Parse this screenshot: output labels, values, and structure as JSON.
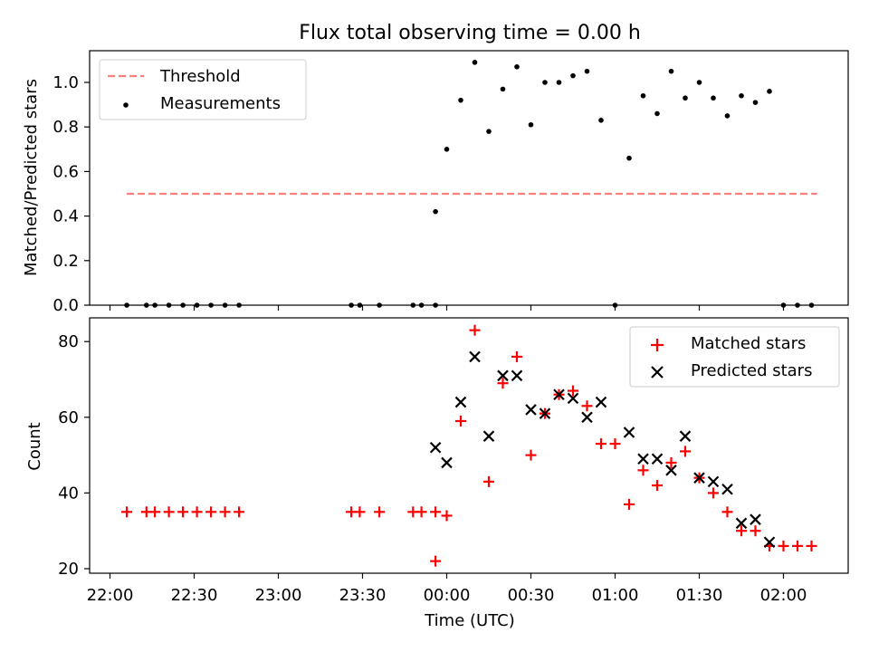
{
  "title": "Flux total observing time = 0.00 h",
  "colors": {
    "threshold": "#ff7f7f",
    "measurement": "#000000",
    "matched": "#ff0000",
    "predicted": "#000000"
  },
  "chart_data": [
    {
      "type": "scatter",
      "title": "Flux total observing time = 0.00 h",
      "xlabel": "",
      "ylabel": "Matched/Predicted stars",
      "ylim": [
        0,
        1.15
      ],
      "yticks": [
        "0.0",
        "0.2",
        "0.4",
        "0.6",
        "0.8",
        "1.0"
      ],
      "legend_position": "top-left",
      "threshold": {
        "name": "Threshold",
        "value": 0.5,
        "x_range": [
          "22:06",
          "02:12"
        ]
      },
      "series": [
        {
          "name": "Measurements",
          "points": [
            [
              "22:06",
              0
            ],
            [
              "22:13",
              0
            ],
            [
              "22:16",
              0
            ],
            [
              "22:21",
              0
            ],
            [
              "22:26",
              0
            ],
            [
              "22:31",
              0
            ],
            [
              "22:36",
              0
            ],
            [
              "22:41",
              0
            ],
            [
              "22:46",
              0
            ],
            [
              "23:26",
              0
            ],
            [
              "23:29",
              0
            ],
            [
              "23:36",
              0
            ],
            [
              "23:48",
              0
            ],
            [
              "23:51",
              0
            ],
            [
              "23:56",
              0
            ],
            [
              "23:56",
              0.42
            ],
            [
              "00:00",
              0.7
            ],
            [
              "00:05",
              0.92
            ],
            [
              "00:10",
              1.09
            ],
            [
              "00:15",
              0.78
            ],
            [
              "00:20",
              0.97
            ],
            [
              "00:25",
              1.07
            ],
            [
              "00:30",
              0.81
            ],
            [
              "00:35",
              1.0
            ],
            [
              "00:40",
              1.0
            ],
            [
              "00:45",
              1.03
            ],
            [
              "00:50",
              1.05
            ],
            [
              "00:55",
              0.83
            ],
            [
              "01:00",
              0
            ],
            [
              "01:05",
              0.66
            ],
            [
              "01:10",
              0.94
            ],
            [
              "01:15",
              0.86
            ],
            [
              "01:20",
              1.05
            ],
            [
              "01:25",
              0.93
            ],
            [
              "01:30",
              1.0
            ],
            [
              "01:35",
              0.93
            ],
            [
              "01:40",
              0.85
            ],
            [
              "01:45",
              0.94
            ],
            [
              "01:50",
              0.91
            ],
            [
              "01:55",
              0.96
            ],
            [
              "02:00",
              0
            ],
            [
              "02:05",
              0
            ],
            [
              "02:10",
              0
            ]
          ]
        }
      ]
    },
    {
      "type": "scatter",
      "title": "",
      "xlabel": "Time (UTC)",
      "ylabel": "Count",
      "ylim": [
        19,
        87
      ],
      "yticks": [
        "20",
        "40",
        "60",
        "80"
      ],
      "xticks": [
        "22:00",
        "22:30",
        "23:00",
        "23:30",
        "00:00",
        "00:30",
        "01:00",
        "01:30",
        "02:00"
      ],
      "legend_position": "top-right",
      "series": [
        {
          "name": "Matched stars",
          "points": [
            [
              "22:06",
              35
            ],
            [
              "22:13",
              35
            ],
            [
              "22:16",
              35
            ],
            [
              "22:21",
              35
            ],
            [
              "22:26",
              35
            ],
            [
              "22:31",
              35
            ],
            [
              "22:36",
              35
            ],
            [
              "22:41",
              35
            ],
            [
              "22:46",
              35
            ],
            [
              "23:26",
              35
            ],
            [
              "23:29",
              35
            ],
            [
              "23:36",
              35
            ],
            [
              "23:48",
              35
            ],
            [
              "23:51",
              35
            ],
            [
              "23:56",
              35
            ],
            [
              "23:56",
              22
            ],
            [
              "00:00",
              34
            ],
            [
              "00:05",
              59
            ],
            [
              "00:10",
              83
            ],
            [
              "00:15",
              43
            ],
            [
              "00:20",
              69
            ],
            [
              "00:25",
              76
            ],
            [
              "00:30",
              50
            ],
            [
              "00:35",
              61
            ],
            [
              "00:40",
              66
            ],
            [
              "00:45",
              67
            ],
            [
              "00:50",
              63
            ],
            [
              "00:55",
              53
            ],
            [
              "01:00",
              53
            ],
            [
              "01:05",
              37
            ],
            [
              "01:10",
              46
            ],
            [
              "01:15",
              42
            ],
            [
              "01:20",
              48
            ],
            [
              "01:25",
              51
            ],
            [
              "01:30",
              44
            ],
            [
              "01:35",
              40
            ],
            [
              "01:40",
              35
            ],
            [
              "01:45",
              30
            ],
            [
              "01:50",
              30
            ],
            [
              "01:55",
              26
            ],
            [
              "02:00",
              26
            ],
            [
              "02:05",
              26
            ],
            [
              "02:10",
              26
            ]
          ]
        },
        {
          "name": "Predicted stars",
          "points": [
            [
              "23:56",
              52
            ],
            [
              "00:00",
              48
            ],
            [
              "00:05",
              64
            ],
            [
              "00:10",
              76
            ],
            [
              "00:15",
              55
            ],
            [
              "00:20",
              71
            ],
            [
              "00:25",
              71
            ],
            [
              "00:30",
              62
            ],
            [
              "00:35",
              61
            ],
            [
              "00:40",
              66
            ],
            [
              "00:45",
              65
            ],
            [
              "00:50",
              60
            ],
            [
              "00:55",
              64
            ],
            [
              "01:05",
              56
            ],
            [
              "01:10",
              49
            ],
            [
              "01:15",
              49
            ],
            [
              "01:20",
              46
            ],
            [
              "01:25",
              55
            ],
            [
              "01:30",
              44
            ],
            [
              "01:35",
              43
            ],
            [
              "01:40",
              41
            ],
            [
              "01:45",
              32
            ],
            [
              "01:50",
              33
            ],
            [
              "01:55",
              27
            ]
          ]
        }
      ]
    }
  ]
}
